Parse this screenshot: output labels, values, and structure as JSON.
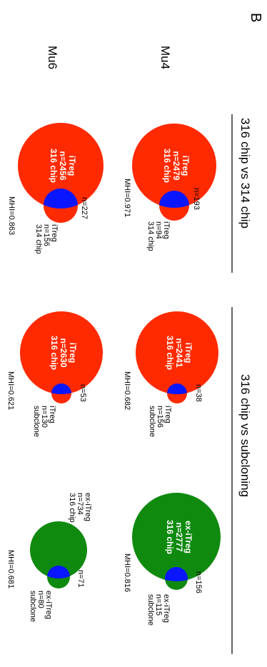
{
  "panel_letter": "B",
  "column_headers": [
    "316 chip vs 314 chip",
    "316 chip vs subcloning"
  ],
  "row_headers": [
    "Mu4",
    "Mu6"
  ],
  "colors": {
    "red": "#ff2a00",
    "blue": "#0a16ff",
    "green": "#0f8a0f"
  },
  "venns": [
    {
      "id": "mu4-chip",
      "color": "red",
      "big_label": [
        "iTreg",
        "n=2479",
        "316 chip"
      ],
      "overlap_label": "n=193",
      "small_label": [
        "iTreg",
        "n=94",
        "314 chip"
      ],
      "mhi": "MHI=0.971"
    },
    {
      "id": "mu6-chip",
      "color": "red",
      "big_label": [
        "iTreg",
        "n=2456",
        "316 chip"
      ],
      "overlap_label": "n=227",
      "small_label": [
        "iTreg",
        "n=156",
        "314 chip"
      ],
      "mhi": "MHI=0.863"
    },
    {
      "id": "mu4-subclone",
      "color": "red",
      "big_label": [
        "iTreg",
        "n=2441",
        "316 chip"
      ],
      "overlap_label": "n=38",
      "small_label": [
        "iTreg",
        "n=156",
        "subclone"
      ],
      "mhi": "MHI=0.682"
    },
    {
      "id": "mu6-subclone",
      "color": "red",
      "big_label": [
        "iTreg",
        "n=2630",
        "316 chip"
      ],
      "overlap_label": "n=53",
      "small_label": [
        "iTreg",
        "n=130",
        "subclone"
      ],
      "mhi": "MHI=0.621"
    },
    {
      "id": "mu4-ex",
      "color": "green",
      "big_label": [
        "ex-iTreg",
        "n=2777",
        "316 chip"
      ],
      "overlap_label": "n=156",
      "small_label": [
        "ex-iTreg",
        "n=115",
        "subclone"
      ],
      "mhi": "MHI=0.816"
    },
    {
      "id": "mu6-ex",
      "color": "green",
      "big_label": [
        "ex-iTreg",
        "n=734",
        "316 chip"
      ],
      "overlap_label": "n=71",
      "small_label": [
        "ex-iTreg",
        "n=80",
        "subclone"
      ],
      "mhi": "MHI=0.681"
    }
  ]
}
